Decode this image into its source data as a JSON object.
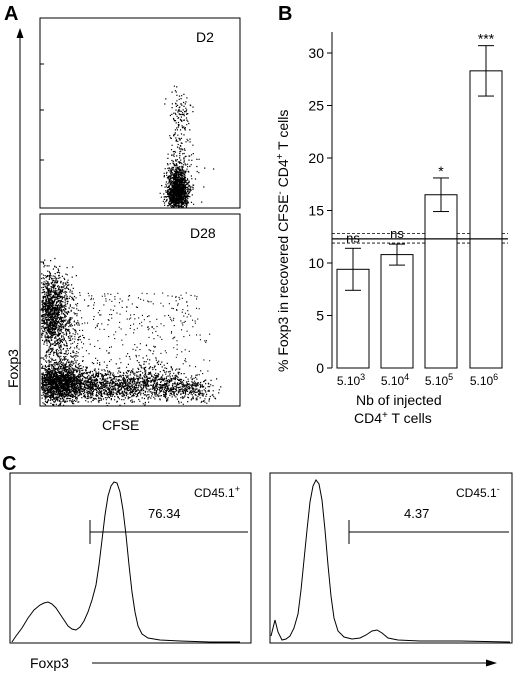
{
  "panel_labels": {
    "a": "A",
    "b": "B",
    "c": "C"
  },
  "panel_a": {
    "top_label": "D2",
    "bottom_label": "D28",
    "xlabel": "CFSE",
    "ylabel": "Foxp3"
  },
  "panel_c": {
    "left": {
      "label_main": "CD45.1",
      "label_sup": "+",
      "gate_value": "76.34"
    },
    "right": {
      "label_main": "CD45.1",
      "label_sup": "-",
      "gate_value": "4.37"
    },
    "xlabel": "Foxp3"
  },
  "chart_data": {
    "type": "bar",
    "ylabel": {
      "pre": "% Foxp3 in recovered CFSE",
      "sup1": "-",
      "mid": " CD4",
      "sup2": "+",
      "post": " T cells"
    },
    "xlabel_line1": "Nb of injected",
    "xlabel_line2": {
      "pre": "CD4",
      "sup": "+",
      "post": " T cells"
    },
    "ylim": [
      0,
      32
    ],
    "yticks": [
      0,
      5,
      10,
      15,
      20,
      25,
      30
    ],
    "categories": [
      {
        "base": "5.10",
        "exp": "3"
      },
      {
        "base": "5.10",
        "exp": "4"
      },
      {
        "base": "5.10",
        "exp": "5"
      },
      {
        "base": "5.10",
        "exp": "6"
      }
    ],
    "values": [
      9.4,
      10.8,
      16.5,
      28.3
    ],
    "errors": [
      2.0,
      1.0,
      1.6,
      2.4
    ],
    "significance": [
      "ns",
      "ns",
      "*",
      "***"
    ],
    "reference": {
      "mean": 12.3,
      "lower": 11.9,
      "upper": 12.8
    }
  }
}
